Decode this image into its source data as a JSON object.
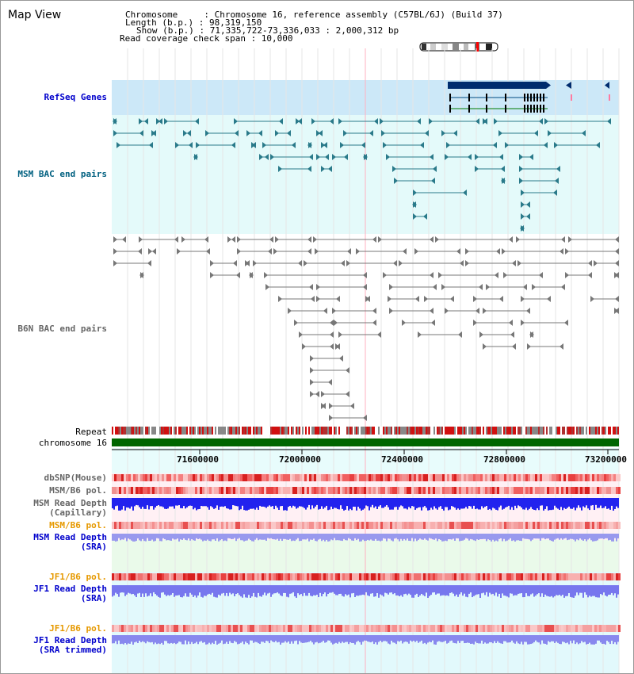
{
  "header": {
    "title": "Map View",
    "chromosome_line": "Chromosome     : Chromosome 16, reference assembly (C57BL/6J) (Build 37)",
    "length_line": "Length (b.p.) : 98,319,150",
    "show_line": "Show (b.p.) : 71,335,722-73,336,033 : 2,000,312 bp",
    "read_coverage_line": "Read coverage check span : 10,000"
  },
  "tracks": {
    "refseq": {
      "label": "RefSeq Genes",
      "color": "#0000cc"
    },
    "msm_bac": {
      "label": "MSM BAC end pairs",
      "color": "#006080"
    },
    "b6n_bac": {
      "label": "B6N BAC end pairs",
      "color": "#666666"
    },
    "repeat": {
      "label": "Repeat"
    },
    "chromosome": {
      "label": "chromosome 16"
    }
  },
  "axis": {
    "ticks": [
      "71600000",
      "72000000",
      "72400000",
      "72800000",
      "73200000"
    ]
  },
  "lower_tracks": [
    {
      "id": "dbsnp",
      "lines": [
        "dbSNP(Mouse)"
      ],
      "color": "#666666"
    },
    {
      "id": "msm_b6_pol",
      "lines": [
        "MSM/B6 pol."
      ],
      "color": "#666666"
    },
    {
      "id": "msm_depth_cap",
      "lines": [
        "MSM Read Depth",
        "(Capillary)"
      ],
      "color": "#666666"
    },
    {
      "id": "msm_b6_pol2",
      "lines": [
        "MSM/B6 pol."
      ],
      "color": "#e69900"
    },
    {
      "id": "msm_depth_sra",
      "lines": [
        "MSM Read Depth",
        "(SRA)"
      ],
      "color": "#0000cc"
    },
    {
      "id": "jf1_b6_pol",
      "lines": [
        "JF1/B6 pol."
      ],
      "color": "#e69900"
    },
    {
      "id": "jf1_depth_sra",
      "lines": [
        "JF1 Read Depth",
        "(SRA)"
      ],
      "color": "#0000cc"
    },
    {
      "id": "jf1_b6_pol2",
      "lines": [
        "JF1/B6 pol."
      ],
      "color": "#e69900"
    },
    {
      "id": "jf1_depth_trim",
      "lines": [
        "JF1 Read Depth",
        "(SRA trimmed)"
      ],
      "color": "#0000cc"
    }
  ],
  "colors": {
    "refseq_bg": "#cce8f8",
    "msm_bg": "#e6fafa",
    "b6n_bg": "#ffffff",
    "chromosome": "#006600",
    "depth_blue": "#2222dd",
    "depth_light": "#8888ee",
    "snp_red": "#e84040"
  }
}
